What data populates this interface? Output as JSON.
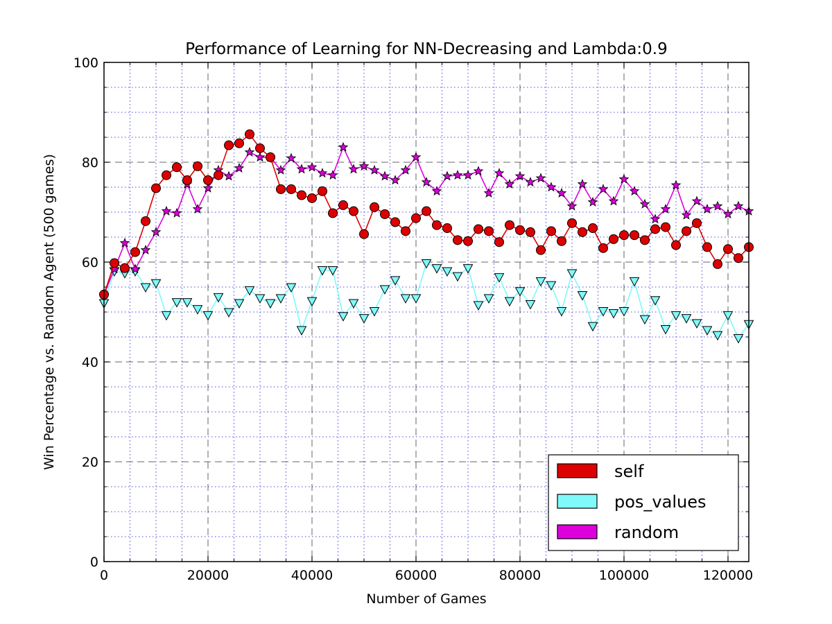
{
  "chart_data": {
    "type": "line",
    "title": "Performance of Learning for NN-Decreasing and Lambda:0.9",
    "xlabel": "Number of Games",
    "ylabel": "Win Percentage vs. Random Agent (500 games)",
    "xlim": [
      0,
      124000
    ],
    "ylim": [
      0,
      100
    ],
    "x_major_ticks": [
      0,
      20000,
      40000,
      60000,
      80000,
      100000,
      120000
    ],
    "x_minor_ticks": [
      5000,
      10000,
      15000,
      25000,
      30000,
      35000,
      45000,
      50000,
      55000,
      65000,
      70000,
      75000,
      85000,
      90000,
      95000,
      105000,
      110000,
      115000
    ],
    "y_major_ticks": [
      0,
      20,
      40,
      60,
      80,
      100
    ],
    "y_minor_ticks": [
      5,
      10,
      15,
      25,
      30,
      35,
      45,
      50,
      55,
      65,
      70,
      75,
      85,
      90,
      95
    ],
    "grid": true,
    "legend_position": "lower-right",
    "x": [
      0,
      2000,
      4000,
      6000,
      8000,
      10000,
      12000,
      14000,
      16000,
      18000,
      20000,
      22000,
      24000,
      26000,
      28000,
      30000,
      32000,
      34000,
      36000,
      38000,
      40000,
      42000,
      44000,
      46000,
      48000,
      50000,
      52000,
      54000,
      56000,
      58000,
      60000,
      62000,
      64000,
      66000,
      68000,
      70000,
      72000,
      74000,
      76000,
      78000,
      80000,
      82000,
      84000,
      86000,
      88000,
      90000,
      92000,
      94000,
      96000,
      98000,
      100000,
      102000,
      104000,
      106000,
      108000,
      110000,
      112000,
      114000,
      116000,
      118000,
      120000,
      122000,
      124000
    ],
    "series": [
      {
        "name": "self",
        "color": "#dd0000",
        "marker": "circle",
        "values": [
          53.5,
          59.8,
          58.8,
          62,
          68.2,
          74.8,
          77.4,
          79,
          76.4,
          79.2,
          76.4,
          77.4,
          83.4,
          83.8,
          85.6,
          82.8,
          81,
          74.6,
          74.6,
          73.4,
          72.8,
          74.2,
          69.8,
          71.4,
          70.2,
          65.6,
          71,
          69.6,
          68,
          66.2,
          68.8,
          70.2,
          67.4,
          66.8,
          64.4,
          64.2,
          66.6,
          66.2,
          64,
          67.4,
          66.4,
          66,
          62.4,
          66.2,
          64.2,
          67.8,
          66,
          66.8,
          62.8,
          64.6,
          65.4,
          65.4,
          64.4,
          66.6,
          67,
          63.4,
          66.2,
          67.8,
          63,
          59.6,
          62.6,
          60.8,
          63
        ]
      },
      {
        "name": "pos_values",
        "color": "#7ff9f9",
        "marker": "triangle-down",
        "values": [
          51.8,
          58.2,
          57.8,
          58.2,
          55,
          55.8,
          49.4,
          52,
          52,
          50.6,
          49.4,
          53,
          50,
          51.8,
          54.4,
          52.8,
          51.8,
          52.8,
          55,
          46.4,
          52.2,
          58.4,
          58.4,
          49.2,
          51.8,
          48.8,
          50.2,
          54.6,
          56.4,
          52.8,
          52.8,
          59.8,
          58.8,
          58.2,
          57.2,
          58.8,
          51.4,
          52.8,
          57,
          52.2,
          54.2,
          51.6,
          56.2,
          55.4,
          50.2,
          57.8,
          53.4,
          47.2,
          50.2,
          49.8,
          50.2,
          56.2,
          48.6,
          52.4,
          46.6,
          49.4,
          48.8,
          47.8,
          46.4,
          45.4,
          49.4,
          44.8,
          47.6
        ]
      },
      {
        "name": "random",
        "color": "#dd00dd",
        "marker": "star",
        "values": [
          53.5,
          58.6,
          63.8,
          58.6,
          62.4,
          66,
          70.2,
          69.8,
          75.6,
          70.6,
          74.8,
          78.4,
          77.2,
          78.8,
          82,
          81,
          81,
          78.4,
          80.8,
          78.6,
          79,
          77.8,
          77.4,
          83,
          78.6,
          79.2,
          78.4,
          77.2,
          76.4,
          78.4,
          81,
          76,
          74.2,
          77.2,
          77.4,
          77.4,
          78.2,
          73.8,
          77.8,
          75.6,
          77.2,
          76,
          76.8,
          75,
          73.8,
          71.2,
          75.6,
          72,
          74.6,
          72.2,
          76.6,
          74.2,
          71.6,
          68.6,
          70.6,
          75.4,
          69.4,
          72.2,
          70.6,
          71.2,
          69.6,
          71.2,
          70.2
        ]
      }
    ]
  }
}
